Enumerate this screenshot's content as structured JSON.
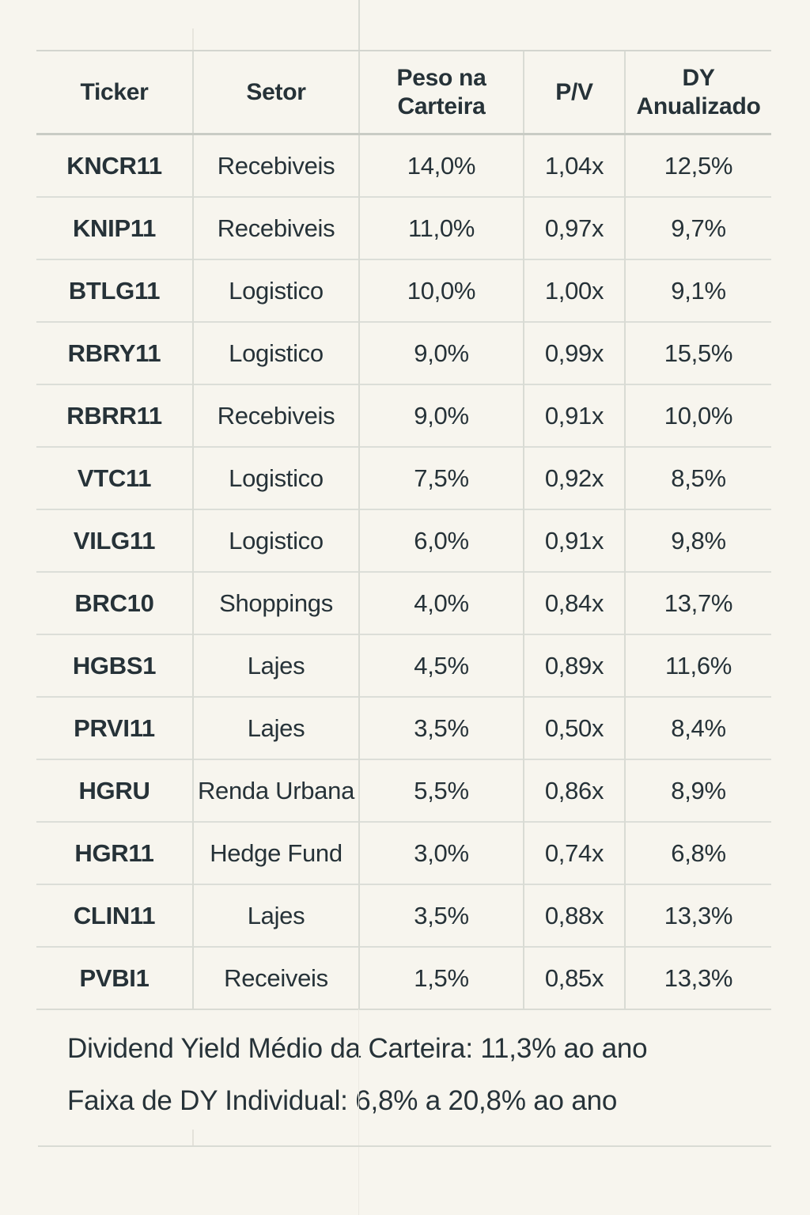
{
  "style": {
    "background": "#f7f5ee",
    "text_color": "#263238",
    "grid_color": "#d9dbd4"
  },
  "chart_data": {
    "type": "table",
    "title": "",
    "columns": [
      "Ticker",
      "Setor",
      "Peso na Carteira",
      "P/V",
      "DY Anualizado"
    ],
    "rows": [
      [
        "KNCR11",
        "Recebiveis",
        "14,0%",
        "1,04x",
        "12,5%"
      ],
      [
        "KNIP11",
        "Recebiveis",
        "11,0%",
        "0,97x",
        "9,7%"
      ],
      [
        "BTLG11",
        "Logistico",
        "10,0%",
        "1,00x",
        "9,1%"
      ],
      [
        "RBRY11",
        "Logistico",
        "9,0%",
        "0,99x",
        "15,5%"
      ],
      [
        "RBRR11",
        "Recebiveis",
        "9,0%",
        "0,91x",
        "10,0%"
      ],
      [
        "VTC11",
        "Logistico",
        "7,5%",
        "0,92x",
        "8,5%"
      ],
      [
        "VILG11",
        "Logistico",
        "6,0%",
        "0,91x",
        "9,8%"
      ],
      [
        "BRC10",
        "Shoppings",
        "4,0%",
        "0,84x",
        "13,7%"
      ],
      [
        "HGBS1",
        "Lajes",
        "4,5%",
        "0,89x",
        "11,6%"
      ],
      [
        "PRVI11",
        "Lajes",
        "3,5%",
        "0,50x",
        "8,4%"
      ],
      [
        "HGRU",
        "Renda Urbana",
        "5,5%",
        "0,86x",
        "8,9%"
      ],
      [
        "HGR11",
        "Hedge Fund",
        "3,0%",
        "0,74x",
        "6,8%"
      ],
      [
        "CLIN11",
        "Lajes",
        "3,5%",
        "0,88x",
        "13,3%"
      ],
      [
        "PVBI1",
        "Receiveis",
        "1,5%",
        "0,85x",
        "13,3%"
      ]
    ],
    "notes": [
      "Dividend Yield Médio da Carteira: 11,3% ao ano",
      "Faixa de DY Individual: 6,8% a 20,8% ao ano"
    ]
  }
}
